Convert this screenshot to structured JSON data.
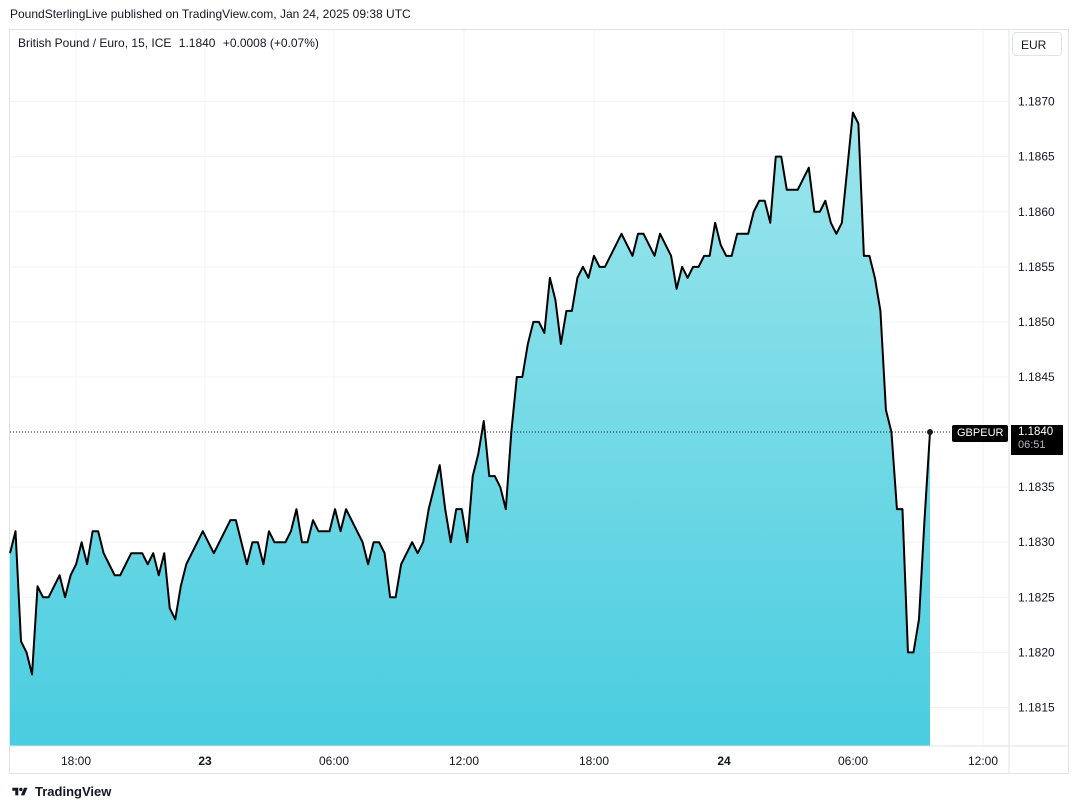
{
  "header": {
    "published_text": "PoundSterlingLive published on TradingView.com, Jan 24, 2025 09:38 UTC"
  },
  "legend": {
    "symbol_name": "British Pound / Euro, 15, ICE",
    "last_price": "1.1840",
    "change": "+0.0008 (+0.07%)"
  },
  "currency_button": "EUR",
  "price_tag": {
    "symbol": "GBPEUR",
    "price": "1.1840",
    "countdown": "06:51"
  },
  "footer": {
    "brand": "TradingView"
  },
  "colors": {
    "line": "#000000",
    "fill_top": "#9ee6ec",
    "fill_bottom": "#49cde0",
    "grid": "#f0f3fa"
  },
  "chart_data": {
    "type": "area",
    "title": "",
    "xlabel": "",
    "ylabel": "",
    "x_ticks": [
      "18:00",
      "23",
      "06:00",
      "12:00",
      "18:00",
      "24",
      "06:00",
      "12:00"
    ],
    "x_ticks_bold": [
      "23",
      "24"
    ],
    "y_ticks": [
      "1.1815",
      "1.1820",
      "1.1825",
      "1.1830",
      "1.1835",
      "1.1840",
      "1.1845",
      "1.1850",
      "1.1855",
      "1.1860",
      "1.1865",
      "1.1870"
    ],
    "ylim": [
      1.18115,
      1.18765
    ],
    "grid": true,
    "current_price_line": 1.184,
    "series": [
      {
        "values": [
          1.1829,
          1.1831,
          1.1821,
          1.182,
          1.1818,
          1.1826,
          1.1825,
          1.1825,
          1.1826,
          1.1827,
          1.1825,
          1.1827,
          1.1828,
          1.183,
          1.1828,
          1.1831,
          1.1831,
          1.1829,
          1.1828,
          1.1827,
          1.1827,
          1.1828,
          1.1829,
          1.1829,
          1.1829,
          1.1828,
          1.1829,
          1.1827,
          1.1829,
          1.1824,
          1.1823,
          1.1826,
          1.1828,
          1.1829,
          1.183,
          1.1831,
          1.183,
          1.1829,
          1.183,
          1.1831,
          1.1832,
          1.1832,
          1.183,
          1.1828,
          1.183,
          1.183,
          1.1828,
          1.1831,
          1.183,
          1.183,
          1.183,
          1.1831,
          1.1833,
          1.183,
          1.183,
          1.1832,
          1.1831,
          1.1831,
          1.1831,
          1.1833,
          1.1831,
          1.1833,
          1.1832,
          1.1831,
          1.183,
          1.1828,
          1.183,
          1.183,
          1.1829,
          1.1825,
          1.1825,
          1.1828,
          1.1829,
          1.183,
          1.1829,
          1.183,
          1.1833,
          1.1835,
          1.1837,
          1.1833,
          1.183,
          1.1833,
          1.1833,
          1.183,
          1.1836,
          1.1838,
          1.1841,
          1.1836,
          1.1836,
          1.1835,
          1.1833,
          1.184,
          1.1845,
          1.1845,
          1.1848,
          1.185,
          1.185,
          1.1849,
          1.1854,
          1.1852,
          1.1848,
          1.1851,
          1.1851,
          1.1854,
          1.1855,
          1.1854,
          1.1856,
          1.1855,
          1.1855,
          1.1856,
          1.1857,
          1.1858,
          1.1857,
          1.1856,
          1.1858,
          1.1858,
          1.1857,
          1.1856,
          1.1858,
          1.1857,
          1.1856,
          1.1853,
          1.1855,
          1.1854,
          1.1855,
          1.1855,
          1.1856,
          1.1856,
          1.1859,
          1.1857,
          1.1856,
          1.1856,
          1.1858,
          1.1858,
          1.1858,
          1.186,
          1.1861,
          1.1861,
          1.1859,
          1.1865,
          1.1865,
          1.1862,
          1.1862,
          1.1862,
          1.1863,
          1.1864,
          1.186,
          1.186,
          1.1861,
          1.1859,
          1.1858,
          1.1859,
          1.1864,
          1.1869,
          1.1868,
          1.1856,
          1.1856,
          1.1854,
          1.1851,
          1.1842,
          1.184,
          1.1833,
          1.1833,
          1.182,
          1.182,
          1.1823,
          1.1832,
          1.184
        ]
      }
    ]
  }
}
